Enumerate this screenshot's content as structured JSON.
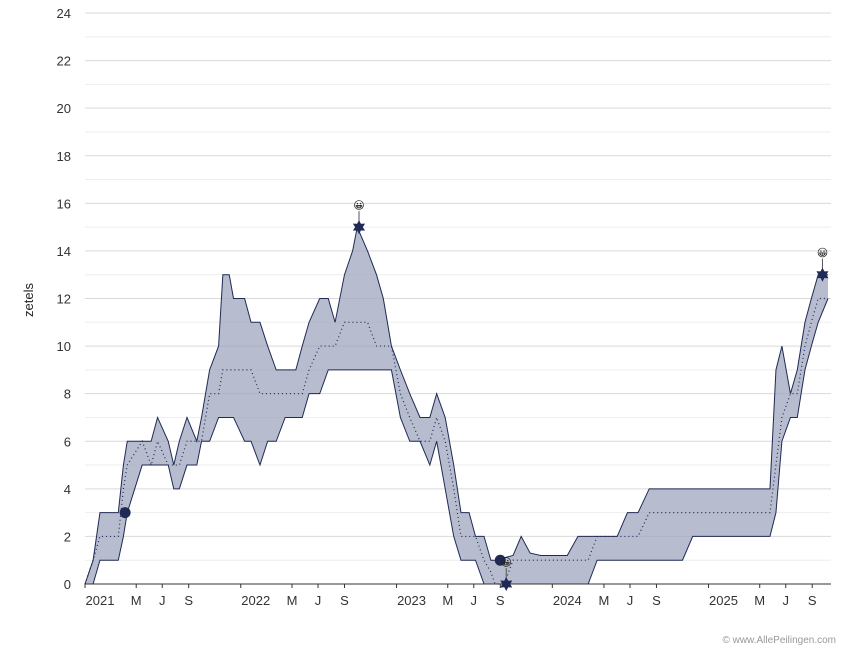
{
  "chart_data": {
    "type": "area",
    "ylabel": "zetels",
    "ylim": [
      0,
      24
    ],
    "yticks": [
      0,
      2,
      4,
      6,
      8,
      10,
      12,
      14,
      16,
      18,
      20,
      22,
      24
    ],
    "grid": true,
    "x_range": [
      "2021-01-01",
      "2025-10-15"
    ],
    "x_ticks": [
      {
        "date": "2021-01-01",
        "label": "2021"
      },
      {
        "date": "2021-05-01",
        "label": "M"
      },
      {
        "date": "2021-07-01",
        "label": "J"
      },
      {
        "date": "2021-09-01",
        "label": "S"
      },
      {
        "date": "2022-01-01",
        "label": "2022"
      },
      {
        "date": "2022-05-01",
        "label": "M"
      },
      {
        "date": "2022-07-01",
        "label": "J"
      },
      {
        "date": "2022-09-01",
        "label": "S"
      },
      {
        "date": "2023-01-01",
        "label": "2023"
      },
      {
        "date": "2023-05-01",
        "label": "M"
      },
      {
        "date": "2023-07-01",
        "label": "J"
      },
      {
        "date": "2023-09-01",
        "label": "S"
      },
      {
        "date": "2024-01-01",
        "label": "2024"
      },
      {
        "date": "2024-05-01",
        "label": "M"
      },
      {
        "date": "2024-07-01",
        "label": "J"
      },
      {
        "date": "2024-09-01",
        "label": "S"
      },
      {
        "date": "2025-01-01",
        "label": "2025"
      },
      {
        "date": "2025-05-01",
        "label": "M"
      },
      {
        "date": "2025-07-01",
        "label": "J"
      },
      {
        "date": "2025-09-01",
        "label": "S"
      }
    ],
    "series": [
      {
        "values_high": [
          [
            "2021-01-01",
            0
          ],
          [
            "2021-01-20",
            1
          ],
          [
            "2021-02-05",
            3
          ],
          [
            "2021-03-05",
            3
          ],
          [
            "2021-03-20",
            3
          ],
          [
            "2021-04-01",
            5
          ],
          [
            "2021-04-10",
            6
          ],
          [
            "2021-05-15",
            6
          ],
          [
            "2021-06-05",
            6
          ],
          [
            "2021-06-20",
            7
          ],
          [
            "2021-07-15",
            6
          ],
          [
            "2021-07-28",
            5
          ],
          [
            "2021-08-10",
            6
          ],
          [
            "2021-08-28",
            7
          ],
          [
            "2021-09-20",
            6
          ],
          [
            "2021-10-01",
            7
          ],
          [
            "2021-10-20",
            9
          ],
          [
            "2021-11-10",
            10
          ],
          [
            "2021-11-20",
            13
          ],
          [
            "2021-12-05",
            13
          ],
          [
            "2021-12-15",
            12
          ],
          [
            "2022-01-10",
            12
          ],
          [
            "2022-01-25",
            11
          ],
          [
            "2022-02-15",
            11
          ],
          [
            "2022-03-05",
            10
          ],
          [
            "2022-03-25",
            9
          ],
          [
            "2022-04-15",
            9
          ],
          [
            "2022-05-10",
            9
          ],
          [
            "2022-05-25",
            10
          ],
          [
            "2022-06-10",
            11
          ],
          [
            "2022-07-05",
            12
          ],
          [
            "2022-07-25",
            12
          ],
          [
            "2022-08-10",
            11
          ],
          [
            "2022-09-01",
            13
          ],
          [
            "2022-09-20",
            14
          ],
          [
            "2022-10-01",
            15
          ],
          [
            "2022-10-25",
            14
          ],
          [
            "2022-11-15",
            13
          ],
          [
            "2022-12-01",
            12
          ],
          [
            "2022-12-20",
            10
          ],
          [
            "2023-01-10",
            9
          ],
          [
            "2023-02-01",
            8
          ],
          [
            "2023-02-25",
            7
          ],
          [
            "2023-03-20",
            7
          ],
          [
            "2023-04-05",
            8
          ],
          [
            "2023-04-25",
            7
          ],
          [
            "2023-05-15",
            5
          ],
          [
            "2023-06-01",
            3
          ],
          [
            "2023-06-20",
            3
          ],
          [
            "2023-07-05",
            2
          ],
          [
            "2023-07-25",
            2
          ],
          [
            "2023-08-10",
            1
          ],
          [
            "2023-08-20",
            1
          ],
          [
            "2023-09-10",
            1.1
          ],
          [
            "2023-10-01",
            1.2
          ],
          [
            "2023-10-20",
            2
          ],
          [
            "2023-11-10",
            1.3
          ],
          [
            "2023-12-05",
            1.2
          ],
          [
            "2024-01-10",
            1.2
          ],
          [
            "2024-02-05",
            1.2
          ],
          [
            "2024-03-01",
            2
          ],
          [
            "2024-03-25",
            2
          ],
          [
            "2024-04-15",
            2
          ],
          [
            "2024-05-10",
            2
          ],
          [
            "2024-06-01",
            2
          ],
          [
            "2024-06-25",
            3
          ],
          [
            "2024-07-20",
            3
          ],
          [
            "2024-08-15",
            4
          ],
          [
            "2024-09-10",
            4
          ],
          [
            "2024-10-05",
            4
          ],
          [
            "2024-11-01",
            4
          ],
          [
            "2024-11-25",
            4
          ],
          [
            "2025-01-05",
            4
          ],
          [
            "2025-02-05",
            4
          ],
          [
            "2025-03-05",
            4
          ],
          [
            "2025-04-01",
            4
          ],
          [
            "2025-04-25",
            4
          ],
          [
            "2025-05-10",
            4
          ],
          [
            "2025-05-25",
            4
          ],
          [
            "2025-06-08",
            9
          ],
          [
            "2025-06-22",
            10
          ],
          [
            "2025-07-12",
            8
          ],
          [
            "2025-07-28",
            9
          ],
          [
            "2025-08-15",
            11
          ],
          [
            "2025-08-30",
            12
          ],
          [
            "2025-09-15",
            13
          ],
          [
            "2025-10-08",
            13
          ]
        ],
        "values_low": [
          [
            "2021-01-01",
            0
          ],
          [
            "2021-01-20",
            0
          ],
          [
            "2021-02-05",
            1
          ],
          [
            "2021-03-05",
            1
          ],
          [
            "2021-03-20",
            1
          ],
          [
            "2021-04-01",
            2
          ],
          [
            "2021-04-10",
            3
          ],
          [
            "2021-05-15",
            5
          ],
          [
            "2021-06-05",
            5
          ],
          [
            "2021-06-20",
            5
          ],
          [
            "2021-07-15",
            5
          ],
          [
            "2021-07-28",
            4
          ],
          [
            "2021-08-10",
            4
          ],
          [
            "2021-08-28",
            5
          ],
          [
            "2021-09-20",
            5
          ],
          [
            "2021-10-01",
            6
          ],
          [
            "2021-10-20",
            6
          ],
          [
            "2021-11-10",
            7
          ],
          [
            "2021-11-20",
            7
          ],
          [
            "2021-12-05",
            7
          ],
          [
            "2021-12-15",
            7
          ],
          [
            "2022-01-10",
            6
          ],
          [
            "2022-01-25",
            6
          ],
          [
            "2022-02-15",
            5
          ],
          [
            "2022-03-05",
            6
          ],
          [
            "2022-03-25",
            6
          ],
          [
            "2022-04-15",
            7
          ],
          [
            "2022-05-10",
            7
          ],
          [
            "2022-05-25",
            7
          ],
          [
            "2022-06-10",
            8
          ],
          [
            "2022-07-05",
            8
          ],
          [
            "2022-07-25",
            9
          ],
          [
            "2022-08-10",
            9
          ],
          [
            "2022-09-01",
            9
          ],
          [
            "2022-09-20",
            9
          ],
          [
            "2022-10-01",
            9
          ],
          [
            "2022-10-25",
            9
          ],
          [
            "2022-11-15",
            9
          ],
          [
            "2022-12-01",
            9
          ],
          [
            "2022-12-20",
            9
          ],
          [
            "2023-01-10",
            7
          ],
          [
            "2023-02-01",
            6
          ],
          [
            "2023-02-25",
            6
          ],
          [
            "2023-03-20",
            5
          ],
          [
            "2023-04-05",
            6
          ],
          [
            "2023-04-25",
            4
          ],
          [
            "2023-05-15",
            2
          ],
          [
            "2023-06-01",
            1
          ],
          [
            "2023-06-20",
            1
          ],
          [
            "2023-07-05",
            1
          ],
          [
            "2023-07-25",
            0
          ],
          [
            "2023-08-10",
            0
          ],
          [
            "2023-08-20",
            0
          ],
          [
            "2023-09-10",
            0
          ],
          [
            "2023-10-01",
            0
          ],
          [
            "2023-10-20",
            0
          ],
          [
            "2023-11-10",
            0
          ],
          [
            "2023-12-05",
            0
          ],
          [
            "2024-01-10",
            0
          ],
          [
            "2024-02-05",
            0
          ],
          [
            "2024-03-01",
            0
          ],
          [
            "2024-03-25",
            0
          ],
          [
            "2024-04-15",
            1
          ],
          [
            "2024-05-10",
            1
          ],
          [
            "2024-06-01",
            1
          ],
          [
            "2024-06-25",
            1
          ],
          [
            "2024-07-20",
            1
          ],
          [
            "2024-08-15",
            1
          ],
          [
            "2024-09-10",
            1
          ],
          [
            "2024-10-05",
            1
          ],
          [
            "2024-11-01",
            1
          ],
          [
            "2024-11-25",
            2
          ],
          [
            "2025-01-05",
            2
          ],
          [
            "2025-02-05",
            2
          ],
          [
            "2025-03-05",
            2
          ],
          [
            "2025-04-01",
            2
          ],
          [
            "2025-04-25",
            2
          ],
          [
            "2025-05-10",
            2
          ],
          [
            "2025-05-25",
            2
          ],
          [
            "2025-06-08",
            3
          ],
          [
            "2025-06-22",
            6
          ],
          [
            "2025-07-12",
            7
          ],
          [
            "2025-07-28",
            7
          ],
          [
            "2025-08-15",
            9
          ],
          [
            "2025-08-30",
            10
          ],
          [
            "2025-09-15",
            11
          ],
          [
            "2025-10-08",
            12
          ]
        ],
        "values_mid": [
          [
            "2021-01-01",
            0
          ],
          [
            "2021-01-20",
            1
          ],
          [
            "2021-02-05",
            2
          ],
          [
            "2021-03-05",
            2
          ],
          [
            "2021-03-20",
            2
          ],
          [
            "2021-04-01",
            4
          ],
          [
            "2021-04-10",
            5
          ],
          [
            "2021-05-15",
            6
          ],
          [
            "2021-06-05",
            5
          ],
          [
            "2021-06-20",
            6
          ],
          [
            "2021-07-15",
            5
          ],
          [
            "2021-07-28",
            5
          ],
          [
            "2021-08-10",
            5
          ],
          [
            "2021-08-28",
            6
          ],
          [
            "2021-09-20",
            6
          ],
          [
            "2021-10-01",
            6
          ],
          [
            "2021-10-20",
            8
          ],
          [
            "2021-11-10",
            8
          ],
          [
            "2021-11-20",
            9
          ],
          [
            "2021-12-05",
            9
          ],
          [
            "2021-12-15",
            9
          ],
          [
            "2022-01-10",
            9
          ],
          [
            "2022-01-25",
            9
          ],
          [
            "2022-02-15",
            8
          ],
          [
            "2022-03-05",
            8
          ],
          [
            "2022-03-25",
            8
          ],
          [
            "2022-04-15",
            8
          ],
          [
            "2022-05-10",
            8
          ],
          [
            "2022-05-25",
            8
          ],
          [
            "2022-06-10",
            9
          ],
          [
            "2022-07-05",
            10
          ],
          [
            "2022-07-25",
            10
          ],
          [
            "2022-08-10",
            10
          ],
          [
            "2022-09-01",
            11
          ],
          [
            "2022-09-20",
            11
          ],
          [
            "2022-10-01",
            11
          ],
          [
            "2022-10-25",
            11
          ],
          [
            "2022-11-15",
            10
          ],
          [
            "2022-12-01",
            10
          ],
          [
            "2022-12-20",
            10
          ],
          [
            "2023-01-10",
            8
          ],
          [
            "2023-02-01",
            7
          ],
          [
            "2023-02-25",
            6
          ],
          [
            "2023-03-20",
            6
          ],
          [
            "2023-04-05",
            7
          ],
          [
            "2023-04-25",
            6
          ],
          [
            "2023-05-15",
            4
          ],
          [
            "2023-06-01",
            2
          ],
          [
            "2023-06-20",
            2
          ],
          [
            "2023-07-05",
            2
          ],
          [
            "2023-07-25",
            1
          ],
          [
            "2023-08-10",
            0.5
          ],
          [
            "2023-08-20",
            0
          ],
          [
            "2023-09-10",
            0
          ],
          [
            "2023-10-01",
            1
          ],
          [
            "2023-10-20",
            1
          ],
          [
            "2023-11-10",
            1
          ],
          [
            "2023-12-05",
            1
          ],
          [
            "2024-01-10",
            1
          ],
          [
            "2024-02-05",
            1
          ],
          [
            "2024-03-01",
            1
          ],
          [
            "2024-03-25",
            1
          ],
          [
            "2024-04-15",
            2
          ],
          [
            "2024-05-10",
            2
          ],
          [
            "2024-06-01",
            2
          ],
          [
            "2024-06-25",
            2
          ],
          [
            "2024-07-20",
            2
          ],
          [
            "2024-08-15",
            3
          ],
          [
            "2024-09-10",
            3
          ],
          [
            "2024-10-05",
            3
          ],
          [
            "2024-11-01",
            3
          ],
          [
            "2024-11-25",
            3
          ],
          [
            "2025-01-05",
            3
          ],
          [
            "2025-02-05",
            3
          ],
          [
            "2025-03-05",
            3
          ],
          [
            "2025-04-01",
            3
          ],
          [
            "2025-04-25",
            3
          ],
          [
            "2025-05-10",
            3
          ],
          [
            "2025-05-25",
            3
          ],
          [
            "2025-06-08",
            5
          ],
          [
            "2025-06-22",
            7
          ],
          [
            "2025-07-12",
            8
          ],
          [
            "2025-07-28",
            8
          ],
          [
            "2025-08-15",
            10
          ],
          [
            "2025-08-30",
            11
          ],
          [
            "2025-09-15",
            12
          ],
          [
            "2025-10-08",
            12
          ]
        ]
      }
    ],
    "markers": [
      {
        "date": "2021-04-05",
        "value": 3,
        "shape": "circle"
      },
      {
        "date": "2022-10-05",
        "value": 15,
        "shape": "star",
        "emoji": "😀"
      },
      {
        "date": "2023-09-01",
        "value": 1,
        "shape": "circle"
      },
      {
        "date": "2023-09-15",
        "value": 0,
        "shape": "star",
        "emoji": "😀"
      },
      {
        "date": "2025-09-25",
        "value": 13,
        "shape": "star",
        "emoji": "😀"
      }
    ],
    "colors": {
      "band_fill": "#9fa6bd",
      "line": "#1f2a55",
      "grid": "#d9d9d9",
      "marker": "#1f2a55"
    }
  },
  "credit": "© www.AllePeilingen.com"
}
